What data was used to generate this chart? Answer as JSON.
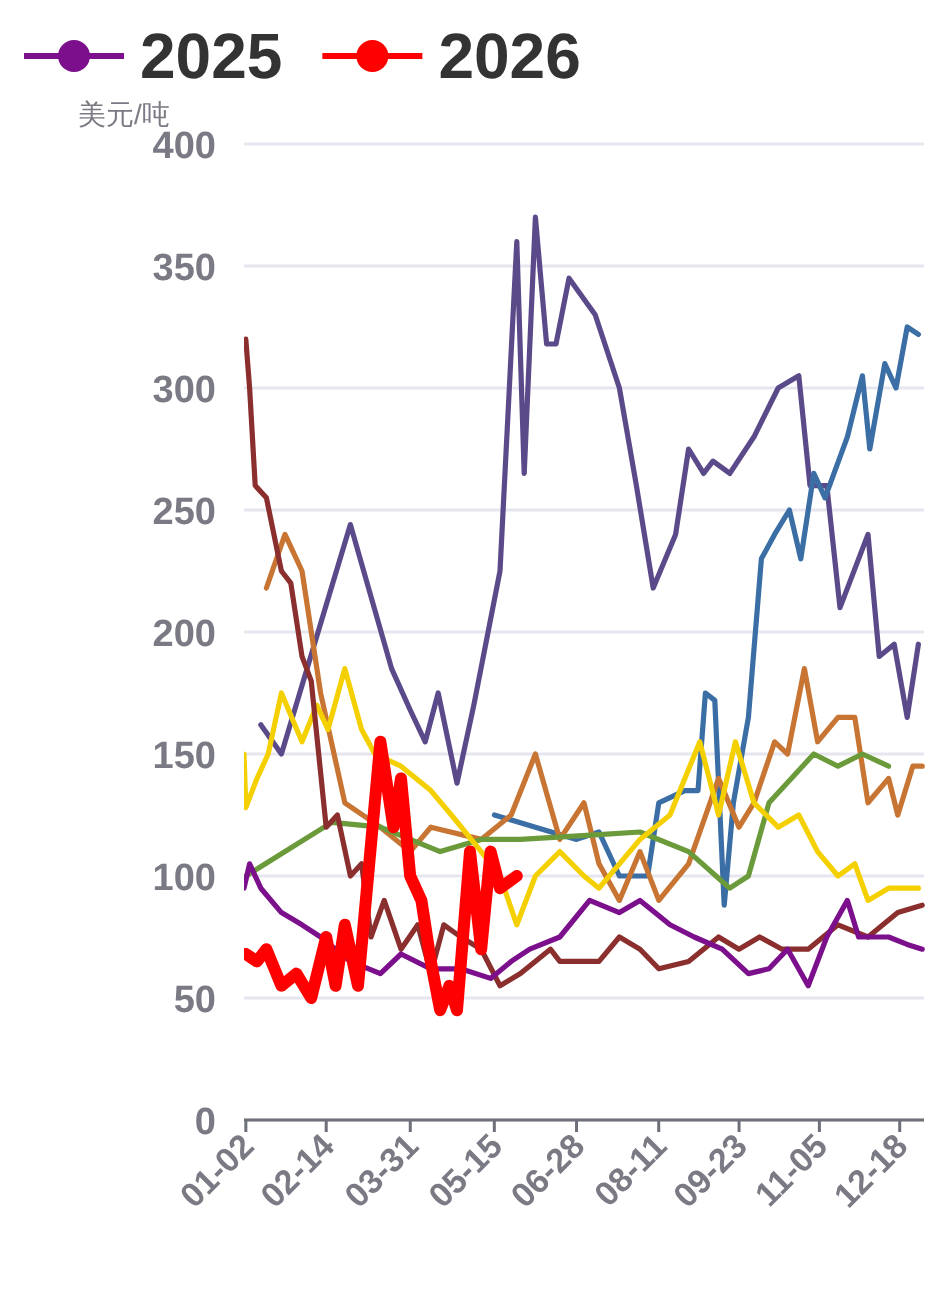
{
  "chart_data": {
    "type": "line",
    "ylabel": "美元/吨",
    "xlim": [
      "--01-01",
      "--12-31"
    ],
    "xticks": [
      {
        "value": "--01-02",
        "label": "01-02"
      },
      {
        "value": "--02-14",
        "label": "02-14"
      },
      {
        "value": "--03-31",
        "label": "03-31"
      },
      {
        "value": "--05-15",
        "label": "05-15"
      },
      {
        "value": "--06-28",
        "label": "06-28"
      },
      {
        "value": "--08-11",
        "label": "08-11"
      },
      {
        "value": "--09-23",
        "label": "09-23"
      },
      {
        "value": "--11-05",
        "label": "11-05"
      },
      {
        "value": "--12-18",
        "label": "12-18"
      }
    ],
    "ylim": [
      0,
      400
    ],
    "yticks": [
      0,
      50,
      100,
      150,
      200,
      250,
      300,
      350,
      400
    ],
    "grid": "y",
    "legend": "top left",
    "series": [
      {
        "color": "#5b4a8a",
        "x": [
          "--01-10",
          "--01-21",
          "--02-27",
          "--03-21",
          "--03-31",
          "--04-08",
          "--04-15",
          "--04-25",
          "--05-04",
          "--05-18",
          "--05-27",
          "--05-31",
          "--06-06",
          "--06-12",
          "--06-17",
          "--06-24",
          "--07-08",
          "--07-21",
          "--07-30",
          "--08-08",
          "--08-20",
          "--08-27",
          "--09-04",
          "--09-09",
          "--09-18",
          "--10-01",
          "--10-14",
          "--10-25",
          "--10-31",
          "--11-09",
          "--11-16",
          "--12-01",
          "--12-07",
          "--12-15",
          "--12-22",
          "--12-28"
        ],
        "values": [
          162,
          150,
          244,
          185,
          168,
          155,
          175,
          138,
          170,
          225,
          360,
          265,
          370,
          318,
          318,
          345,
          330,
          300,
          260,
          218,
          240,
          275,
          265,
          270,
          265,
          280,
          300,
          305,
          260,
          260,
          210,
          240,
          190,
          195,
          165,
          195
        ]
      },
      {
        "color": "#3a6ea5",
        "x": [
          "--05-15",
          "--06-06",
          "--06-28",
          "--07-10",
          "--07-21",
          "--08-05",
          "--08-11",
          "--08-25",
          "--09-01",
          "--09-05",
          "--09-10",
          "--09-15",
          "--09-20",
          "--09-28",
          "--10-05",
          "--10-12",
          "--10-20",
          "--10-26",
          "--11-02",
          "--11-08",
          "--11-20",
          "--11-28",
          "--12-02",
          "--12-10",
          "--12-16",
          "--12-22",
          "--12-28"
        ],
        "values": [
          125,
          120,
          115,
          118,
          100,
          100,
          130,
          135,
          135,
          175,
          172,
          88,
          130,
          165,
          230,
          240,
          250,
          230,
          265,
          255,
          280,
          305,
          275,
          310,
          300,
          325,
          322
        ]
      },
      {
        "color": "#c87533",
        "x": [
          "--01-13",
          "--01-23",
          "--02-01",
          "--02-11",
          "--02-24",
          "--03-15",
          "--03-31",
          "--04-11",
          "--05-08",
          "--05-24",
          "--06-06",
          "--06-19",
          "--07-02",
          "--07-10",
          "--07-21",
          "--08-01",
          "--08-11",
          "--08-27",
          "--09-12",
          "--09-23",
          "--10-01",
          "--10-12",
          "--10-19",
          "--10-28",
          "--11-04",
          "--11-15",
          "--11-24",
          "--12-01",
          "--12-12",
          "--12-17",
          "--12-25",
          "--12-30"
        ],
        "values": [
          218,
          240,
          225,
          175,
          130,
          120,
          110,
          120,
          115,
          125,
          150,
          115,
          130,
          105,
          90,
          110,
          90,
          105,
          140,
          120,
          130,
          155,
          150,
          185,
          155,
          165,
          165,
          130,
          140,
          125,
          145,
          145
        ]
      },
      {
        "color": "#6b9a3a",
        "x": [
          "--01-02",
          "--02-17",
          "--03-15",
          "--03-31",
          "--04-16",
          "--05-08",
          "--05-29",
          "--07-10",
          "--08-01",
          "--08-27",
          "--09-18",
          "--09-28",
          "--10-09",
          "--11-02",
          "--11-15",
          "--11-28",
          "--12-12"
        ],
        "values": [
          100,
          122,
          120,
          115,
          110,
          115,
          115,
          117,
          118,
          110,
          95,
          100,
          130,
          150,
          145,
          150,
          145
        ]
      },
      {
        "color": "#f5d000",
        "x": [
          "--01-01",
          "--01-02",
          "--01-08",
          "--01-14",
          "--01-21",
          "--02-01",
          "--02-09",
          "--02-15",
          "--02-24",
          "--03-05",
          "--03-12",
          "--03-26",
          "--04-11",
          "--04-22",
          "--05-08",
          "--05-18",
          "--05-27",
          "--06-06",
          "--06-19",
          "--07-02",
          "--07-10",
          "--08-01",
          "--08-17",
          "--09-02",
          "--09-07",
          "--09-12",
          "--09-21",
          "--10-01",
          "--10-14",
          "--10-25",
          "--11-04",
          "--11-15",
          "--11-24",
          "--12-01",
          "--12-12",
          "--12-28"
        ],
        "values": [
          150,
          128,
          140,
          150,
          175,
          155,
          170,
          160,
          185,
          160,
          150,
          145,
          135,
          125,
          110,
          100,
          80,
          100,
          110,
          100,
          95,
          115,
          125,
          155,
          140,
          125,
          155,
          130,
          120,
          125,
          110,
          100,
          105,
          90,
          95,
          95
        ]
      },
      {
        "color": "#8b2e2e",
        "x": [
          "--01-02",
          "--01-04",
          "--01-07",
          "--01-13",
          "--01-21",
          "--01-26",
          "--02-01",
          "--02-06",
          "--02-14",
          "--02-20",
          "--02-27",
          "--03-05",
          "--03-10",
          "--03-17",
          "--03-26",
          "--04-04",
          "--04-11",
          "--04-18",
          "--04-27",
          "--05-08",
          "--05-18",
          "--05-29",
          "--06-14",
          "--06-19",
          "--07-10",
          "--07-21",
          "--08-01",
          "--08-11",
          "--08-27",
          "--09-12",
          "--09-23",
          "--10-04",
          "--10-16",
          "--10-30",
          "--11-15",
          "--12-01",
          "--12-17",
          "--12-30"
        ],
        "values": [
          320,
          300,
          260,
          255,
          225,
          220,
          190,
          180,
          120,
          125,
          100,
          105,
          75,
          90,
          70,
          80,
          60,
          80,
          75,
          70,
          55,
          60,
          70,
          65,
          65,
          75,
          70,
          62,
          65,
          75,
          70,
          75,
          70,
          70,
          80,
          75,
          85,
          88
        ]
      },
      {
        "name": "2025",
        "color": "#7b0f8c",
        "x": [
          "--01-01",
          "--01-04",
          "--01-10",
          "--01-21",
          "--02-01",
          "--02-11",
          "--02-27",
          "--03-15",
          "--03-26",
          "--04-11",
          "--04-27",
          "--05-13",
          "--05-24",
          "--06-03",
          "--06-19",
          "--07-05",
          "--07-21",
          "--08-01",
          "--08-17",
          "--08-30",
          "--09-14",
          "--09-28",
          "--10-09",
          "--10-19",
          "--10-30",
          "--11-09",
          "--11-20",
          "--11-26",
          "--12-12",
          "--12-22",
          "--12-30"
        ],
        "values": [
          95,
          105,
          95,
          85,
          80,
          75,
          65,
          60,
          68,
          62,
          62,
          58,
          65,
          70,
          75,
          90,
          85,
          90,
          80,
          75,
          70,
          60,
          62,
          70,
          55,
          75,
          90,
          75,
          75,
          72,
          70
        ]
      },
      {
        "name": "2026",
        "color": "#ff0000",
        "x": [
          "--01-02",
          "--01-08",
          "--01-13",
          "--01-21",
          "--01-29",
          "--02-06",
          "--02-14",
          "--02-19",
          "--02-24",
          "--03-03",
          "--03-15",
          "--03-22",
          "--03-26",
          "--03-31",
          "--04-06",
          "--04-11",
          "--04-16",
          "--04-21",
          "--04-25",
          "--05-02",
          "--05-08",
          "--05-13",
          "--05-18",
          "--05-27"
        ],
        "values": [
          68,
          65,
          70,
          55,
          60,
          50,
          75,
          55,
          80,
          55,
          155,
          120,
          140,
          100,
          90,
          65,
          45,
          55,
          45,
          110,
          70,
          110,
          95,
          100
        ]
      }
    ]
  }
}
